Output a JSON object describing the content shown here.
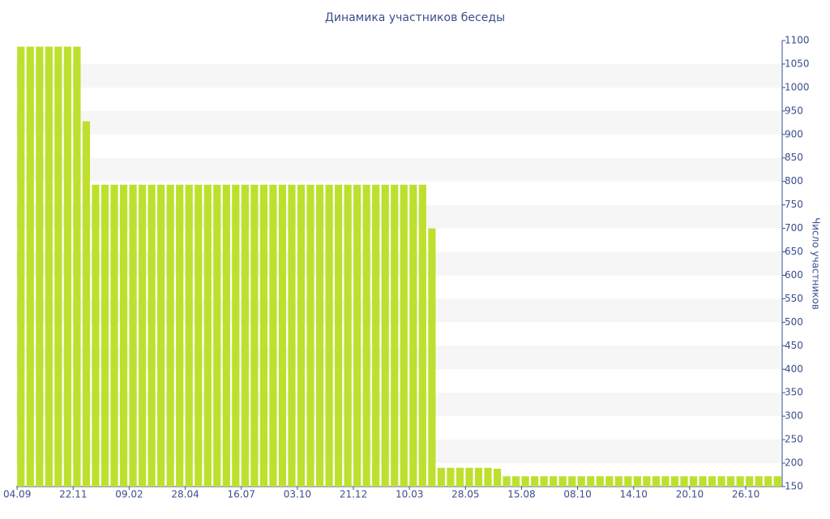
{
  "chart_data": {
    "type": "bar",
    "title": "Динамика участников беседы",
    "y_label": "Число участников",
    "categories": [
      "04.09",
      null,
      null,
      null,
      null,
      null,
      "22.11",
      null,
      null,
      null,
      null,
      null,
      "09.02",
      null,
      null,
      null,
      null,
      null,
      "28.04",
      null,
      null,
      null,
      null,
      null,
      "16.07",
      null,
      null,
      null,
      null,
      null,
      "03.10",
      null,
      null,
      null,
      null,
      null,
      "21.12",
      null,
      null,
      null,
      null,
      null,
      "10.03",
      null,
      null,
      null,
      null,
      null,
      "28.05",
      null,
      null,
      null,
      null,
      null,
      "15.08",
      null,
      null,
      null,
      null,
      null,
      "08.10",
      null,
      null,
      null,
      null,
      null,
      "14.10",
      null,
      null,
      null,
      null,
      null,
      "20.10",
      null,
      null,
      null,
      null,
      null,
      "26.10",
      null,
      null,
      null
    ],
    "values": [
      1087,
      1087,
      1087,
      1087,
      1087,
      1087,
      1087,
      928,
      793,
      793,
      793,
      793,
      793,
      793,
      793,
      793,
      793,
      793,
      793,
      793,
      793,
      793,
      793,
      793,
      793,
      793,
      793,
      793,
      793,
      793,
      793,
      793,
      793,
      793,
      793,
      793,
      793,
      793,
      793,
      793,
      793,
      793,
      793,
      793,
      700,
      190,
      190,
      190,
      190,
      190,
      190,
      188,
      172,
      172,
      172,
      172,
      172,
      172,
      172,
      172,
      172,
      172,
      172,
      172,
      172,
      172,
      172,
      172,
      172,
      172,
      172,
      172,
      172,
      172,
      172,
      172,
      172,
      172,
      172,
      172,
      172,
      172
    ],
    "color": "#bde02e",
    "ylim": [
      150,
      1100
    ],
    "yticks": [
      150,
      200,
      250,
      300,
      350,
      400,
      450,
      500,
      550,
      600,
      650,
      700,
      750,
      800,
      850,
      900,
      950,
      1000,
      1050,
      1100
    ],
    "grid": true
  }
}
